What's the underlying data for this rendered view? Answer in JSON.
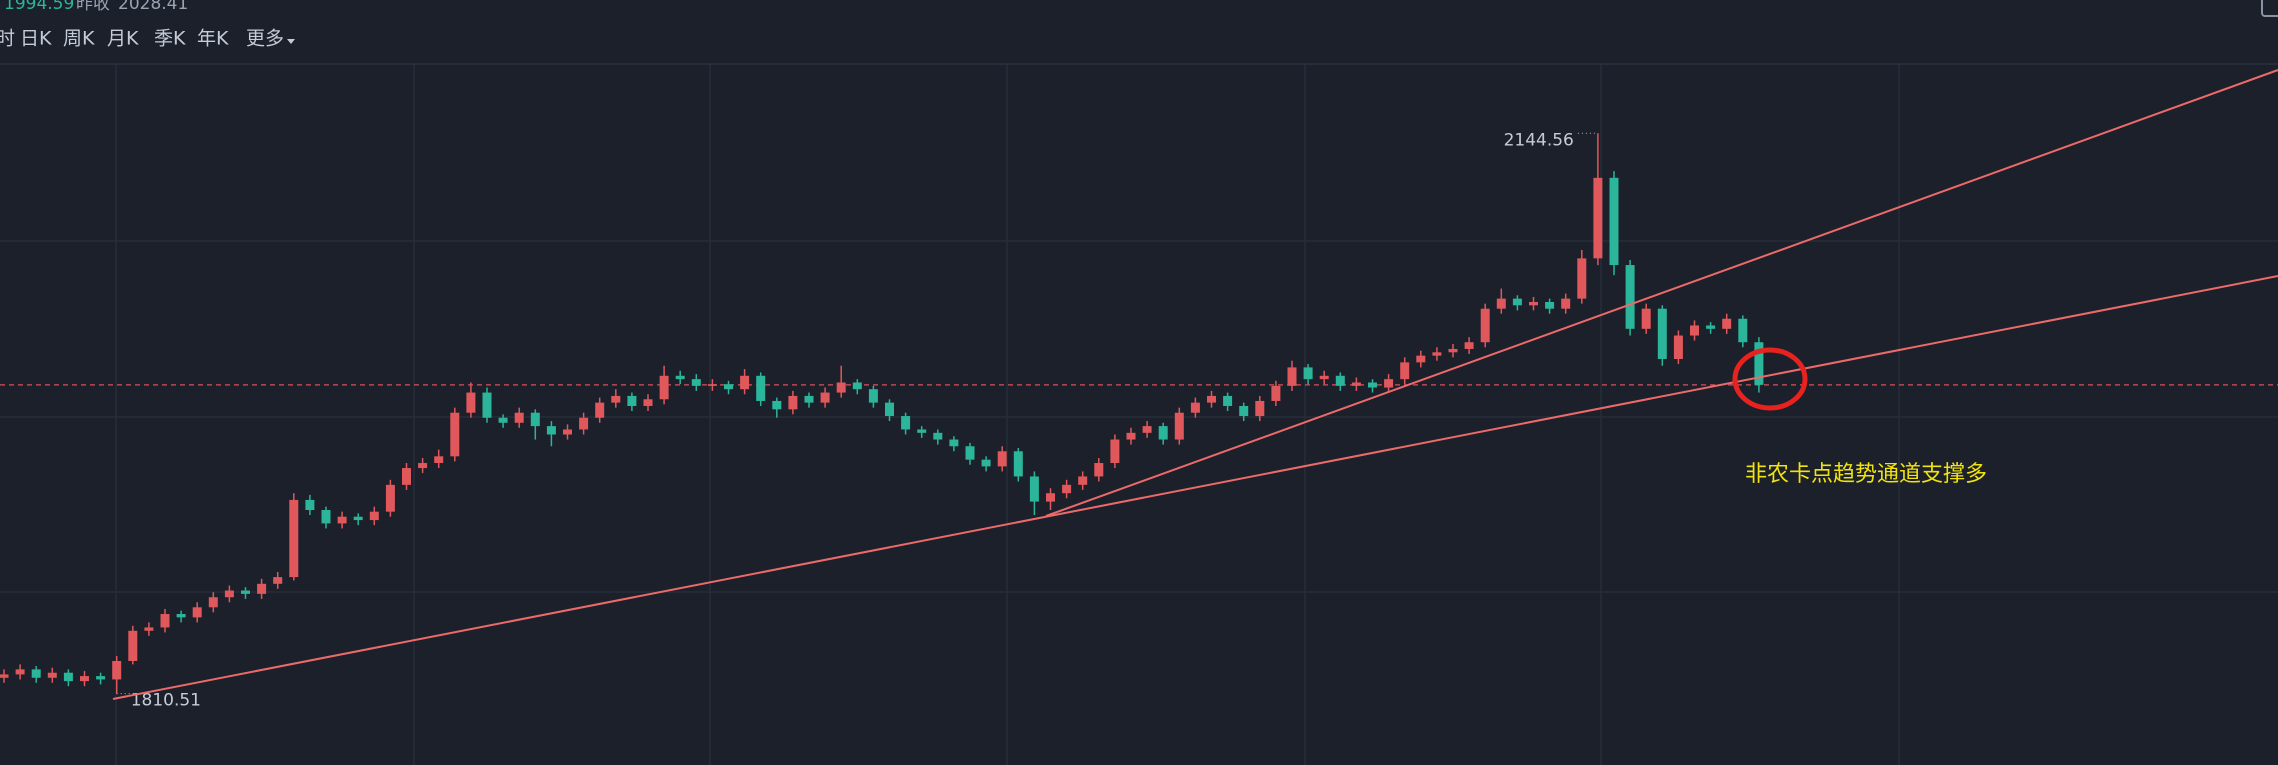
{
  "toolbar": {
    "tabs": [
      "时",
      "日K",
      "周K",
      "月K",
      "季K",
      "年K"
    ],
    "more": "更多"
  },
  "chart_data": {
    "type": "candlestick",
    "current_price": 1994.59,
    "prev_close_label": "昨收",
    "prev_close": 2028.41,
    "ylim": [
      1768,
      2224
    ],
    "up_color": "#e0585b",
    "down_color": "#2bb59a",
    "ohlc": [
      [
        1820,
        1825,
        1817,
        1822
      ],
      [
        1822,
        1828,
        1819,
        1825
      ],
      [
        1825,
        1827,
        1817,
        1820
      ],
      [
        1820,
        1826,
        1817,
        1823
      ],
      [
        1823,
        1825,
        1815,
        1818
      ],
      [
        1818,
        1824,
        1815,
        1821
      ],
      [
        1821,
        1823,
        1816,
        1819
      ],
      [
        1819,
        1833,
        1810.51,
        1830
      ],
      [
        1830,
        1851,
        1828,
        1848
      ],
      [
        1848,
        1853,
        1845,
        1850
      ],
      [
        1850,
        1861,
        1847,
        1858
      ],
      [
        1858,
        1860,
        1853,
        1856
      ],
      [
        1856,
        1865,
        1853,
        1862
      ],
      [
        1862,
        1871,
        1859,
        1868
      ],
      [
        1868,
        1875,
        1865,
        1872
      ],
      [
        1872,
        1874,
        1867,
        1870
      ],
      [
        1870,
        1879,
        1867,
        1876
      ],
      [
        1876,
        1883,
        1873,
        1880
      ],
      [
        1880,
        1930,
        1878,
        1926
      ],
      [
        1926,
        1929,
        1917,
        1920
      ],
      [
        1920,
        1922,
        1909,
        1912
      ],
      [
        1912,
        1919,
        1909,
        1916
      ],
      [
        1916,
        1918,
        1911,
        1914
      ],
      [
        1914,
        1922,
        1911,
        1919
      ],
      [
        1919,
        1938,
        1916,
        1935
      ],
      [
        1935,
        1948,
        1932,
        1945
      ],
      [
        1945,
        1951,
        1942,
        1948
      ],
      [
        1948,
        1956,
        1945,
        1952
      ],
      [
        1952,
        1981,
        1949,
        1978
      ],
      [
        1978,
        1996,
        1975,
        1990
      ],
      [
        1990,
        1993,
        1972,
        1975
      ],
      [
        1975,
        1977,
        1969,
        1972
      ],
      [
        1972,
        1981,
        1969,
        1978
      ],
      [
        1978,
        1980,
        1962,
        1970
      ],
      [
        1970,
        1973,
        1958,
        1965
      ],
      [
        1965,
        1971,
        1962,
        1968
      ],
      [
        1968,
        1978,
        1965,
        1975
      ],
      [
        1975,
        1987,
        1972,
        1984
      ],
      [
        1984,
        1992,
        1981,
        1988
      ],
      [
        1988,
        1990,
        1979,
        1982
      ],
      [
        1982,
        1989,
        1979,
        1986
      ],
      [
        1986,
        2006,
        1983,
        2000
      ],
      [
        2000,
        2003,
        1995,
        1998
      ],
      [
        1998,
        2001,
        1991,
        1994
      ],
      [
        1994,
        1998,
        1991,
        1995
      ],
      [
        1995,
        1997,
        1989,
        1992
      ],
      [
        1992,
        2004,
        1989,
        2000
      ],
      [
        2000,
        2002,
        1982,
        1985
      ],
      [
        1985,
        1987,
        1975,
        1980
      ],
      [
        1980,
        1991,
        1977,
        1988
      ],
      [
        1988,
        1990,
        1981,
        1984
      ],
      [
        1984,
        1993,
        1981,
        1990
      ],
      [
        1990,
        2006,
        1987,
        1996
      ],
      [
        1996,
        1998,
        1989,
        1992
      ],
      [
        1992,
        1994,
        1981,
        1984
      ],
      [
        1984,
        1986,
        1973,
        1976
      ],
      [
        1976,
        1978,
        1965,
        1968
      ],
      [
        1968,
        1970,
        1963,
        1966
      ],
      [
        1966,
        1968,
        1959,
        1962
      ],
      [
        1962,
        1964,
        1955,
        1958
      ],
      [
        1958,
        1960,
        1947,
        1950
      ],
      [
        1950,
        1952,
        1943,
        1946
      ],
      [
        1946,
        1958,
        1943,
        1955
      ],
      [
        1955,
        1957,
        1937,
        1940
      ],
      [
        1940,
        1943,
        1917,
        1925
      ],
      [
        1925,
        1933,
        1920,
        1930
      ],
      [
        1930,
        1938,
        1927,
        1935
      ],
      [
        1935,
        1943,
        1932,
        1940
      ],
      [
        1940,
        1951,
        1937,
        1948
      ],
      [
        1948,
        1965,
        1945,
        1962
      ],
      [
        1962,
        1969,
        1959,
        1966
      ],
      [
        1966,
        1973,
        1963,
        1970
      ],
      [
        1970,
        1972,
        1959,
        1962
      ],
      [
        1962,
        1981,
        1959,
        1978
      ],
      [
        1978,
        1987,
        1975,
        1984
      ],
      [
        1984,
        1991,
        1981,
        1988
      ],
      [
        1988,
        1990,
        1979,
        1982
      ],
      [
        1982,
        1984,
        1973,
        1976
      ],
      [
        1976,
        1988,
        1973,
        1985
      ],
      [
        1985,
        1997,
        1982,
        1994
      ],
      [
        1994,
        2009,
        1991,
        2005
      ],
      [
        2005,
        2007,
        1995,
        1998
      ],
      [
        1998,
        2003,
        1995,
        2000
      ],
      [
        2000,
        2002,
        1991,
        1994
      ],
      [
        1994,
        1999,
        1991,
        1996
      ],
      [
        1996,
        1998,
        1990,
        1993
      ],
      [
        1993,
        2001,
        1990,
        1998
      ],
      [
        1998,
        2011,
        1995,
        2008
      ],
      [
        2008,
        2015,
        2005,
        2012
      ],
      [
        2012,
        2017,
        2009,
        2014
      ],
      [
        2014,
        2019,
        2011,
        2016
      ],
      [
        2016,
        2023,
        2013,
        2020
      ],
      [
        2020,
        2043,
        2017,
        2040
      ],
      [
        2040,
        2052,
        2037,
        2046
      ],
      [
        2046,
        2048,
        2039,
        2042
      ],
      [
        2042,
        2047,
        2039,
        2044
      ],
      [
        2044,
        2046,
        2037,
        2040
      ],
      [
        2040,
        2049,
        2037,
        2046
      ],
      [
        2046,
        2075,
        2043,
        2070
      ],
      [
        2070,
        2144.56,
        2066,
        2118
      ],
      [
        2118,
        2122,
        2060,
        2066
      ],
      [
        2066,
        2069,
        2024,
        2028
      ],
      [
        2028,
        2043,
        2025,
        2040
      ],
      [
        2040,
        2042,
        2006,
        2010
      ],
      [
        2010,
        2027,
        2007,
        2024
      ],
      [
        2024,
        2033,
        2021,
        2030
      ],
      [
        2030,
        2032,
        2025,
        2028
      ],
      [
        2028,
        2037,
        2025,
        2034
      ],
      [
        2034,
        2036,
        2017,
        2020
      ],
      [
        2020,
        2023,
        1990,
        1994.59
      ]
    ]
  },
  "annotation": "非农卡点趋势通道支撑多"
}
